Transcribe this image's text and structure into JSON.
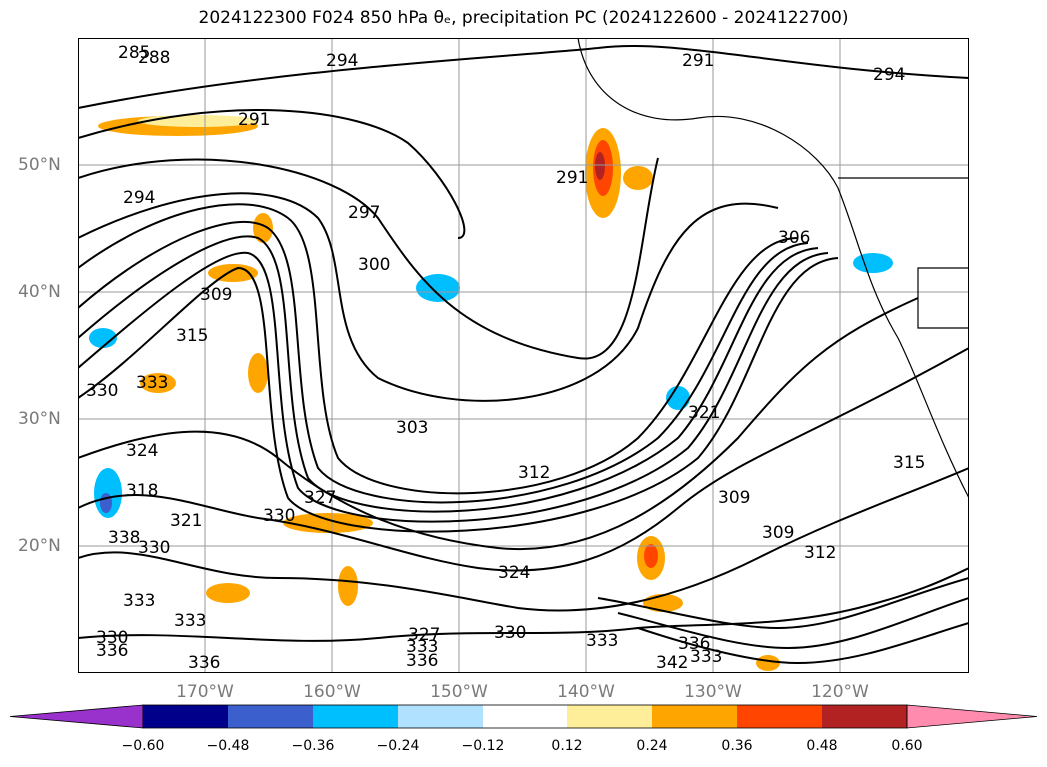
{
  "title": "2024122300 F024 850 hPa θₑ, precipitation PC (2024122600 - 2024122700)",
  "lat_labels": [
    "50°N",
    "40°N",
    "30°N",
    "20°N"
  ],
  "lon_labels": [
    "170°W",
    "160°W",
    "150°W",
    "140°W",
    "130°W",
    "120°W"
  ],
  "contour_labels": [
    "285",
    "288",
    "294",
    "291",
    "291",
    "294",
    "294",
    "297",
    "300",
    "291",
    "306",
    "309",
    "315",
    "330",
    "333",
    "303",
    "324",
    "318",
    "321",
    "327",
    "312",
    "321",
    "309",
    "309",
    "312",
    "315",
    "330",
    "338",
    "330",
    "324",
    "333",
    "333",
    "327",
    "333",
    "330",
    "333",
    "336",
    "342",
    "330",
    "336",
    "336",
    "336",
    "333"
  ],
  "colorbar": {
    "ticks": [
      "−0.60",
      "−0.48",
      "−0.36",
      "−0.24",
      "−0.12",
      "0.12",
      "0.24",
      "0.36",
      "0.48",
      "0.60"
    ],
    "colors": [
      "#9932cc",
      "#00008b",
      "#3b5fcd",
      "#00bfff",
      "#b0e2ff",
      "#ffffff",
      "#ffee99",
      "#ffa500",
      "#ff4500",
      "#b22222",
      "#ff8cae"
    ]
  }
}
